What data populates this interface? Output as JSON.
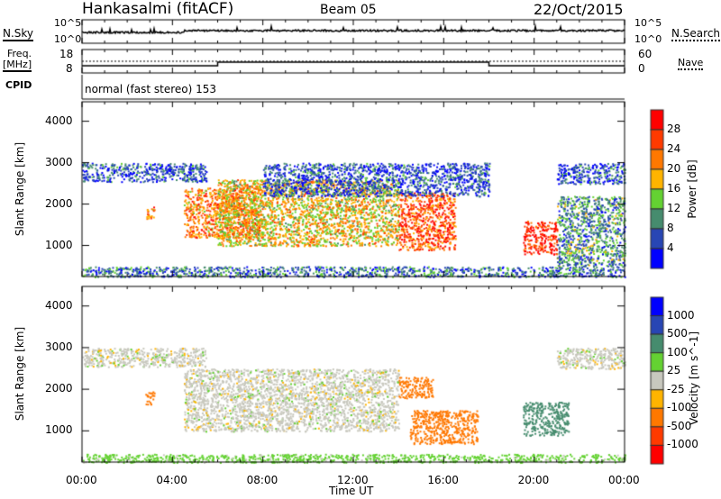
{
  "header": {
    "title": "Hankasalmi (fitACF)",
    "beam": "Beam 05",
    "date": "22/Oct/2015"
  },
  "noise_panel": {
    "left_label": "N.Sky",
    "right_label": "N.Search",
    "left_ticks": [
      "10^5",
      "10^0"
    ],
    "right_ticks": [
      "10^5",
      "10^0"
    ]
  },
  "freq_panel": {
    "left_label": "Freq.",
    "left_unit": "[MHz]",
    "left_ticks": [
      "18",
      "8"
    ],
    "right_label": "Nave",
    "right_ticks": [
      "60",
      "0"
    ]
  },
  "cpid": {
    "label": "CPID",
    "value": "normal (fast stereo) 153"
  },
  "chart_data": [
    {
      "type": "heatmap",
      "name": "power",
      "ylabel": "Slant Range [km]",
      "yticks": [
        "1000",
        "2000",
        "3000",
        "4000"
      ],
      "ylim": [
        250,
        4470
      ],
      "xlim_hours": [
        0,
        24
      ],
      "colorbar": {
        "label": "Power [dB]",
        "ticks": [
          "28",
          "24",
          "20",
          "16",
          "12",
          "8",
          "4"
        ],
        "colors": [
          "#ff0000",
          "#ff3a00",
          "#ff7800",
          "#ffb400",
          "#64d232",
          "#468c6e",
          "#2846b4",
          "#0000ff"
        ]
      },
      "echo_regions": [
        {
          "t": [
            0,
            5.5
          ],
          "r": [
            2550,
            3000
          ],
          "value": 6
        },
        {
          "t": [
            2.8,
            3.2
          ],
          "r": [
            1650,
            1950
          ],
          "value": 22
        },
        {
          "t": [
            4.5,
            8
          ],
          "r": [
            1200,
            2400
          ],
          "value": 22
        },
        {
          "t": [
            6,
            14
          ],
          "r": [
            1000,
            2600
          ],
          "value": 18
        },
        {
          "t": [
            14,
            16.5
          ],
          "r": [
            900,
            2300
          ],
          "value": 25
        },
        {
          "t": [
            8,
            18
          ],
          "r": [
            2200,
            3000
          ],
          "value": 6
        },
        {
          "t": [
            19.5,
            21
          ],
          "r": [
            800,
            1600
          ],
          "value": 28
        },
        {
          "t": [
            21,
            24
          ],
          "r": [
            500,
            2200
          ],
          "value": 10
        },
        {
          "t": [
            0,
            24
          ],
          "r": [
            250,
            500
          ],
          "value": 8
        },
        {
          "t": [
            21,
            24
          ],
          "r": [
            2500,
            3000
          ],
          "value": 6
        }
      ]
    },
    {
      "type": "heatmap",
      "name": "velocity",
      "ylabel": "Slant Range [km]",
      "yticks": [
        "1000",
        "2000",
        "3000",
        "4000"
      ],
      "ylim": [
        250,
        4470
      ],
      "xlim_hours": [
        0,
        24
      ],
      "colorbar": {
        "label": "Velocity [m s^-1]",
        "ticks": [
          "1000",
          "500",
          "100",
          "25",
          "-25",
          "-100",
          "-500",
          "-1000"
        ],
        "colors": [
          "#0000ff",
          "#2846b4",
          "#468c6e",
          "#64d232",
          "#c8c8be",
          "#ffb400",
          "#ff7800",
          "#ff3a00",
          "#ff0000"
        ]
      },
      "echo_regions": [
        {
          "t": [
            0,
            5.5
          ],
          "r": [
            2550,
            3000
          ],
          "value": 0
        },
        {
          "t": [
            2.8,
            3.2
          ],
          "r": [
            1650,
            1950
          ],
          "value": -200
        },
        {
          "t": [
            4.5,
            14
          ],
          "r": [
            1000,
            2500
          ],
          "value": 0
        },
        {
          "t": [
            14.5,
            17.5
          ],
          "r": [
            700,
            1500
          ],
          "value": -300
        },
        {
          "t": [
            14,
            15.5
          ],
          "r": [
            1800,
            2300
          ],
          "value": -300
        },
        {
          "t": [
            19.5,
            21.5
          ],
          "r": [
            900,
            1700
          ],
          "value": 200
        },
        {
          "t": [
            21,
            24
          ],
          "r": [
            2500,
            3000
          ],
          "value": 0
        },
        {
          "t": [
            0,
            24
          ],
          "r": [
            250,
            450
          ],
          "value": 50
        }
      ]
    }
  ],
  "xaxis": {
    "ticks": [
      "00:00",
      "04:00",
      "08:00",
      "12:00",
      "16:00",
      "20:00",
      "00:00"
    ],
    "label": "Time UT"
  }
}
